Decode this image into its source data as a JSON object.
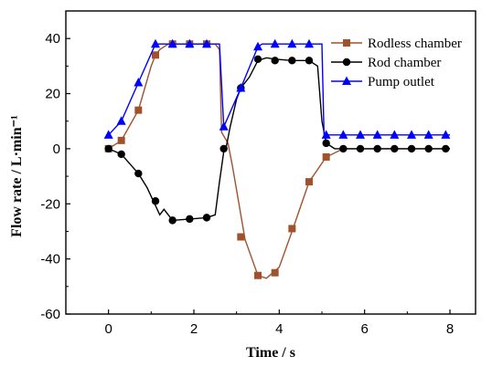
{
  "chart_data": {
    "type": "line",
    "title": "",
    "xlabel": "Time / s",
    "ylabel": "Flow rate / L·min⁻¹",
    "xlim": [
      -1,
      8.6
    ],
    "ylim": [
      -60,
      50
    ],
    "xticks": [
      0,
      2,
      4,
      6,
      8
    ],
    "yticks": [
      -60,
      -40,
      -20,
      0,
      20,
      40
    ],
    "grid": false,
    "legend_position": "top-right",
    "series": [
      {
        "name": "Rodless chamber",
        "color": "#a0522d",
        "marker": "square",
        "line": [
          [
            0,
            0
          ],
          [
            0.3,
            3
          ],
          [
            0.7,
            14
          ],
          [
            1.0,
            30
          ],
          [
            1.1,
            34
          ],
          [
            1.2,
            36
          ],
          [
            1.4,
            38
          ],
          [
            1.6,
            38
          ],
          [
            2.0,
            38
          ],
          [
            2.5,
            38
          ],
          [
            2.6,
            36
          ],
          [
            2.65,
            6
          ],
          [
            2.8,
            2
          ],
          [
            2.9,
            -6
          ],
          [
            3.0,
            -15
          ],
          [
            3.2,
            -33
          ],
          [
            3.5,
            -46
          ],
          [
            3.7,
            -47
          ],
          [
            4.0,
            -43
          ],
          [
            4.3,
            -30
          ],
          [
            4.7,
            -12
          ],
          [
            5.1,
            -3
          ],
          [
            5.5,
            0
          ],
          [
            8,
            0
          ]
        ],
        "markers": [
          [
            0,
            0
          ],
          [
            0.3,
            3
          ],
          [
            0.7,
            14
          ],
          [
            1.1,
            34
          ],
          [
            1.5,
            38
          ],
          [
            1.9,
            38
          ],
          [
            2.3,
            38
          ],
          [
            3.1,
            -32
          ],
          [
            3.5,
            -46
          ],
          [
            3.9,
            -45
          ],
          [
            4.3,
            -29
          ],
          [
            4.7,
            -12
          ],
          [
            5.1,
            -3
          ]
        ]
      },
      {
        "name": "Rod chamber",
        "color": "#000000",
        "marker": "circle",
        "line": [
          [
            0,
            0
          ],
          [
            0.3,
            -2
          ],
          [
            0.7,
            -9
          ],
          [
            0.9,
            -14
          ],
          [
            1.05,
            -19
          ],
          [
            1.2,
            -24
          ],
          [
            1.3,
            -22
          ],
          [
            1.5,
            -26
          ],
          [
            1.9,
            -25.5
          ],
          [
            2.3,
            -25
          ],
          [
            2.5,
            -24
          ],
          [
            2.6,
            -12
          ],
          [
            2.7,
            -1
          ],
          [
            2.75,
            0
          ],
          [
            2.85,
            8
          ],
          [
            3.0,
            18
          ],
          [
            3.1,
            22
          ],
          [
            3.3,
            26
          ],
          [
            3.5,
            32
          ],
          [
            3.7,
            33
          ],
          [
            3.9,
            32.5
          ],
          [
            4.3,
            32
          ],
          [
            4.7,
            32
          ],
          [
            4.9,
            30
          ],
          [
            5.0,
            10
          ],
          [
            5.1,
            2
          ],
          [
            5.3,
            0
          ],
          [
            8,
            0
          ]
        ],
        "markers": [
          [
            0,
            0
          ],
          [
            0.3,
            -2
          ],
          [
            0.7,
            -9
          ],
          [
            1.1,
            -19
          ],
          [
            1.5,
            -26
          ],
          [
            1.9,
            -25.5
          ],
          [
            2.3,
            -25
          ],
          [
            2.7,
            0
          ],
          [
            3.1,
            22
          ],
          [
            3.5,
            32.5
          ],
          [
            3.9,
            32
          ],
          [
            4.3,
            32
          ],
          [
            4.7,
            32
          ],
          [
            5.1,
            2
          ],
          [
            5.5,
            0
          ],
          [
            5.9,
            0
          ],
          [
            6.3,
            0
          ],
          [
            6.7,
            0
          ],
          [
            7.1,
            0
          ],
          [
            7.5,
            0
          ],
          [
            7.9,
            0
          ]
        ]
      },
      {
        "name": "Pump outlet",
        "color": "#0000ff",
        "marker": "triangle",
        "line": [
          [
            0,
            5
          ],
          [
            0.3,
            10
          ],
          [
            0.7,
            24
          ],
          [
            1.1,
            38
          ],
          [
            1.5,
            38
          ],
          [
            2.5,
            38
          ],
          [
            2.6,
            38
          ],
          [
            2.7,
            8
          ],
          [
            3.1,
            22
          ],
          [
            3.5,
            37
          ],
          [
            3.6,
            38
          ],
          [
            4.9,
            38
          ],
          [
            5.0,
            38
          ],
          [
            5.05,
            5
          ],
          [
            5.1,
            5
          ],
          [
            8,
            5
          ]
        ],
        "markers": [
          [
            0,
            5
          ],
          [
            0.3,
            10
          ],
          [
            0.7,
            24
          ],
          [
            1.1,
            38
          ],
          [
            1.5,
            38
          ],
          [
            1.9,
            38
          ],
          [
            2.3,
            38
          ],
          [
            2.7,
            8
          ],
          [
            3.1,
            22
          ],
          [
            3.5,
            37
          ],
          [
            3.9,
            38
          ],
          [
            4.3,
            38
          ],
          [
            4.7,
            38
          ],
          [
            5.1,
            5
          ],
          [
            5.5,
            5
          ],
          [
            5.9,
            5
          ],
          [
            6.3,
            5
          ],
          [
            6.7,
            5
          ],
          [
            7.1,
            5
          ],
          [
            7.5,
            5
          ],
          [
            7.9,
            5
          ]
        ]
      }
    ]
  }
}
